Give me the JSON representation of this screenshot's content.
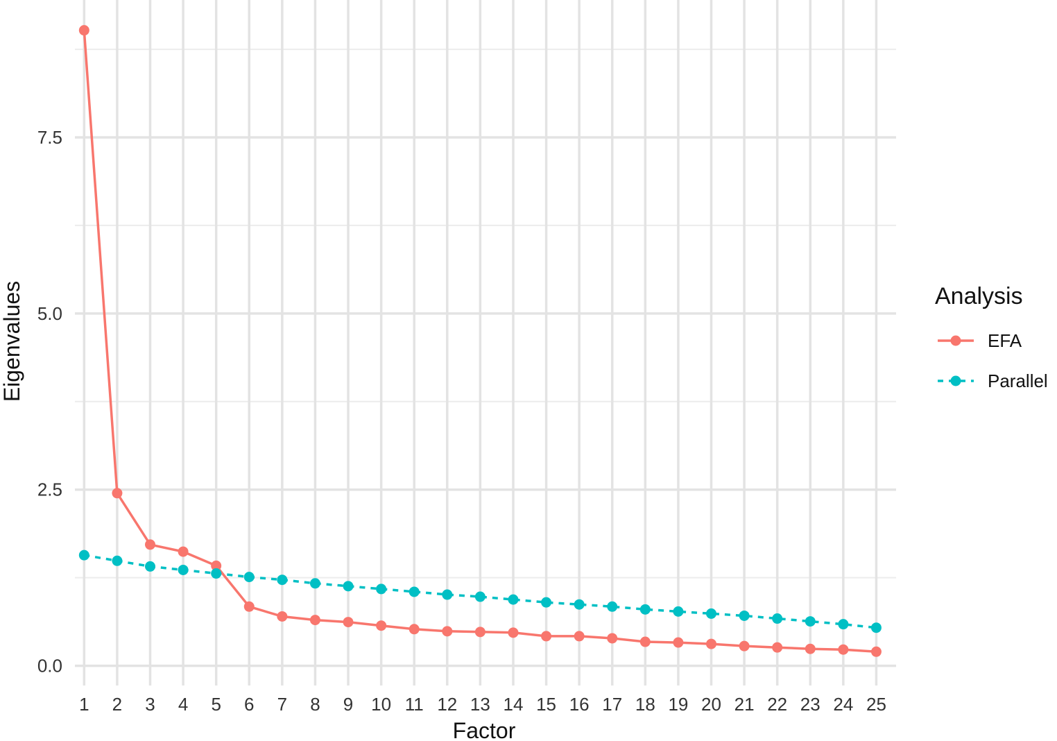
{
  "chart_data": {
    "type": "line",
    "xlabel": "Factor",
    "ylabel": "Eigenvalues",
    "x": [
      1,
      2,
      3,
      4,
      5,
      6,
      7,
      8,
      9,
      10,
      11,
      12,
      13,
      14,
      15,
      16,
      17,
      18,
      19,
      20,
      21,
      22,
      23,
      24,
      25
    ],
    "xlim": [
      0.72,
      25.6
    ],
    "ylim": [
      -0.28,
      9.45
    ],
    "y_ticks": [
      0.0,
      2.5,
      5.0,
      7.5
    ],
    "y_tick_labels": [
      "0.0",
      "2.5",
      "5.0",
      "7.5"
    ],
    "grid": true,
    "legend": {
      "title": "Analysis",
      "position": "right"
    },
    "series": [
      {
        "name": "EFA",
        "color": "#f8766d",
        "line_style": "solid",
        "values": [
          9.02,
          2.45,
          1.72,
          1.62,
          1.42,
          0.84,
          0.7,
          0.65,
          0.62,
          0.57,
          0.52,
          0.49,
          0.48,
          0.47,
          0.42,
          0.42,
          0.39,
          0.34,
          0.33,
          0.31,
          0.28,
          0.26,
          0.24,
          0.23,
          0.2
        ]
      },
      {
        "name": "Parallel",
        "color": "#00bfc4",
        "line_style": "dashed",
        "values": [
          1.57,
          1.49,
          1.41,
          1.36,
          1.31,
          1.26,
          1.22,
          1.17,
          1.13,
          1.09,
          1.05,
          1.01,
          0.98,
          0.94,
          0.9,
          0.87,
          0.84,
          0.8,
          0.77,
          0.74,
          0.71,
          0.67,
          0.63,
          0.59,
          0.54
        ]
      }
    ]
  }
}
